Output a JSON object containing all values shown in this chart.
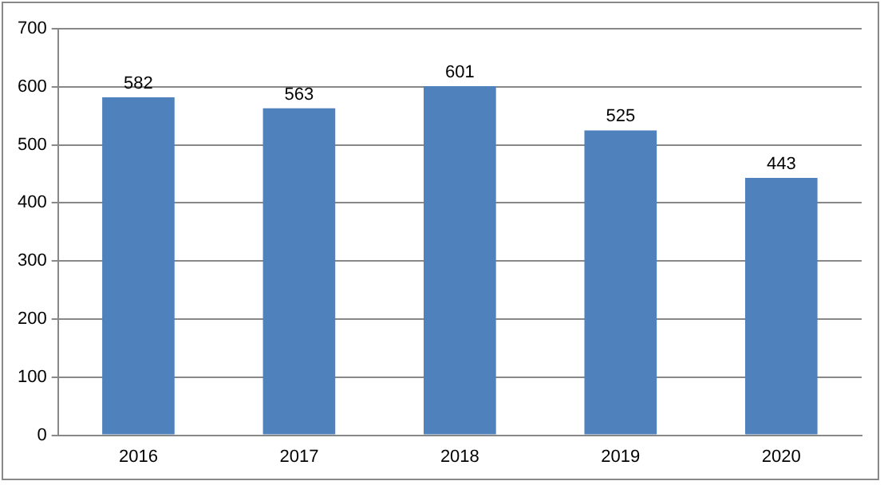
{
  "chart_data": {
    "type": "bar",
    "categories": [
      "2016",
      "2017",
      "2018",
      "2019",
      "2020"
    ],
    "values": [
      582,
      563,
      601,
      525,
      443
    ],
    "color": "#4f81bd",
    "ylim": [
      0,
      700
    ],
    "yticks": [
      0,
      100,
      200,
      300,
      400,
      500,
      600,
      700
    ],
    "grid": "y",
    "data_labels": true
  }
}
